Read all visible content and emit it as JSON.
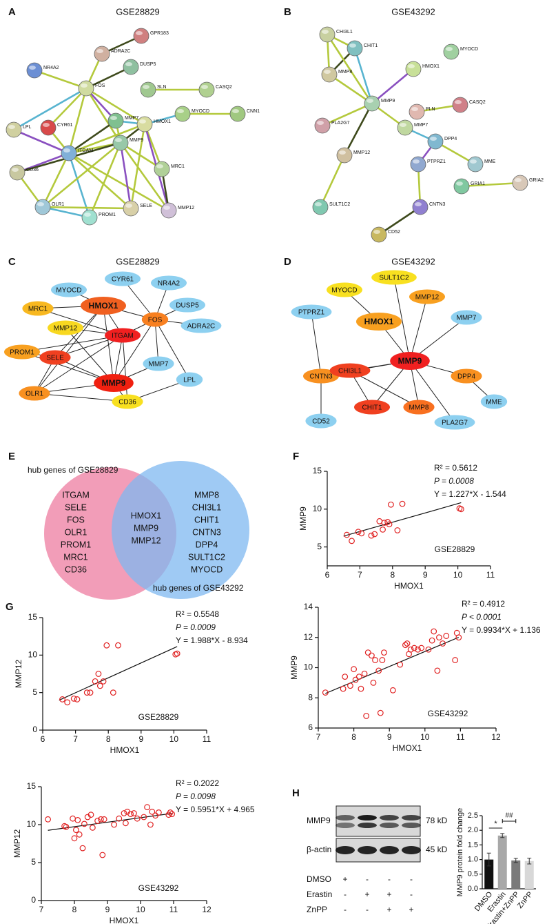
{
  "networks": [
    {
      "letter": "A",
      "title": "GSE28829",
      "style": "string",
      "nodes": [
        {
          "label": "GPR183",
          "color": "#d08080"
        },
        {
          "label": "ADRA2C",
          "color": "#d0b0a0"
        },
        {
          "label": "NR4A2",
          "color": "#6c8fd4"
        },
        {
          "label": "DUSP5",
          "color": "#8fc0a0"
        },
        {
          "label": "FOS",
          "color": "#d0dba0"
        },
        {
          "label": "SLN",
          "color": "#a0c890"
        },
        {
          "label": "CASQ2",
          "color": "#b0d090"
        },
        {
          "label": "CYR61",
          "color": "#d84a4a"
        },
        {
          "label": "LPL",
          "color": "#d0d0a0"
        },
        {
          "label": "MMP7",
          "color": "#80c090"
        },
        {
          "label": "HMOX1",
          "color": "#d8dca0"
        },
        {
          "label": "MYOCD",
          "color": "#a8d088"
        },
        {
          "label": "CNN1",
          "color": "#a0c880"
        },
        {
          "label": "ITGAM",
          "color": "#80b0d8"
        },
        {
          "label": "CD36",
          "color": "#c8c8a0"
        },
        {
          "label": "MMP9",
          "color": "#98c8a8"
        },
        {
          "label": "MRC1",
          "color": "#b0d098"
        },
        {
          "label": "OLR1",
          "color": "#a0c8d8"
        },
        {
          "label": "PROM1",
          "color": "#a0e0d0"
        },
        {
          "label": "SELE",
          "color": "#d8d0a8"
        },
        {
          "label": "MMP12",
          "color": "#d0c0d8"
        }
      ]
    },
    {
      "letter": "B",
      "title": "GSE43292",
      "style": "string",
      "nodes": [
        {
          "label": "CHI3L1",
          "color": "#c8d0a0"
        },
        {
          "label": "CHIT1",
          "color": "#80c0c0"
        },
        {
          "label": "MYOCD",
          "color": "#a0d0a0"
        },
        {
          "label": "MMP8",
          "color": "#d0c8a0"
        },
        {
          "label": "HMOX1",
          "color": "#c8e098"
        },
        {
          "label": "MMP9",
          "color": "#a8d0b0"
        },
        {
          "label": "PLN",
          "color": "#e0b8b0"
        },
        {
          "label": "CASQ2",
          "color": "#d08088"
        },
        {
          "label": "PLA2G7",
          "color": "#d0a0a8"
        },
        {
          "label": "MMP7",
          "color": "#c0d8a0"
        },
        {
          "label": "DPP4",
          "color": "#80b8d0"
        },
        {
          "label": "PTPRZ1",
          "color": "#90a8d0"
        },
        {
          "label": "MME",
          "color": "#a0c8d0"
        },
        {
          "label": "MMP12",
          "color": "#d0c0a0"
        },
        {
          "label": "GRIA2",
          "color": "#d8c8b8"
        },
        {
          "label": "GRIA1",
          "color": "#80c8a0"
        },
        {
          "label": "CNTN3",
          "color": "#9080d0"
        },
        {
          "label": "SULT1C2",
          "color": "#80c8b0"
        },
        {
          "label": "CD52",
          "color": "#c8b860"
        }
      ]
    },
    {
      "letter": "C",
      "title": "GSE28829",
      "style": "ellipse",
      "nodes": [
        {
          "label": "MYOCD",
          "color": "#8dd0f0"
        },
        {
          "label": "CYR61",
          "color": "#8dd0f0"
        },
        {
          "label": "NR4A2",
          "color": "#8dd0f0"
        },
        {
          "label": "DUSP5",
          "color": "#8dd0f0"
        },
        {
          "label": "HMOX1",
          "color": "#f06020",
          "bold": true
        },
        {
          "label": "MRC1",
          "color": "#f8b820"
        },
        {
          "label": "FOS",
          "color": "#f88020"
        },
        {
          "label": "ADRA2C",
          "color": "#8dd0f0"
        },
        {
          "label": "MMP12",
          "color": "#f8d820"
        },
        {
          "label": "ITGAM",
          "color": "#f02020"
        },
        {
          "label": "PROM1",
          "color": "#f8a020"
        },
        {
          "label": "SELE",
          "color": "#f04020"
        },
        {
          "label": "MMP7",
          "color": "#8dd0f0"
        },
        {
          "label": "MMP9",
          "color": "#f02010",
          "bold": true
        },
        {
          "label": "LPL",
          "color": "#8dd0f0"
        },
        {
          "label": "OLR1",
          "color": "#f89020"
        },
        {
          "label": "CD36",
          "color": "#f8e020"
        }
      ]
    },
    {
      "letter": "D",
      "title": "GSE43292",
      "style": "ellipse",
      "nodes": [
        {
          "label": "MYOCD",
          "color": "#f8e020"
        },
        {
          "label": "SULT1C2",
          "color": "#f8e020"
        },
        {
          "label": "MMP12",
          "color": "#f8a020"
        },
        {
          "label": "PTPRZ1",
          "color": "#8dd0f0"
        },
        {
          "label": "HMOX1",
          "color": "#f8a020",
          "bold": true
        },
        {
          "label": "MMP7",
          "color": "#8dd0f0"
        },
        {
          "label": "CNTN3",
          "color": "#f89020"
        },
        {
          "label": "CHI3L1",
          "color": "#f04020"
        },
        {
          "label": "MMP9",
          "color": "#f02020",
          "bold": true
        },
        {
          "label": "DPP4",
          "color": "#f89020"
        },
        {
          "label": "MME",
          "color": "#8dd0f0"
        },
        {
          "label": "CD52",
          "color": "#8dd0f0"
        },
        {
          "label": "CHIT1",
          "color": "#f04020"
        },
        {
          "label": "MMP8",
          "color": "#f87020"
        },
        {
          "label": "PLA2G7",
          "color": "#8dd0f0"
        }
      ]
    }
  ],
  "venn": {
    "letter": "E",
    "left_title": "hub genes of GSE28829",
    "right_title": "hub genes of GSE43292",
    "left_color": "#f08cab",
    "right_color": "#7fb8f0",
    "left_only": [
      "ITGAM",
      "SELE",
      "FOS",
      "OLR1",
      "PROM1",
      "MRC1",
      "CD36"
    ],
    "shared": [
      "HMOX1",
      "MMP9",
      "MMP12"
    ],
    "right_only": [
      "MMP8",
      "CHI3L1",
      "CHIT1",
      "CNTN3",
      "DPP4",
      "SULT1C2",
      "MYOCD"
    ]
  },
  "chart_data": [
    {
      "type": "scatter",
      "letter": "F",
      "dataset": "GSE28829",
      "xlabel": "HMOX1",
      "ylabel": "MMP9",
      "color": "#e02020",
      "stats": [
        "R² = 0.5612",
        "P = 0.0008",
        "Y = 1.227*X - 1.544"
      ],
      "xlim": [
        6,
        11
      ],
      "xticks": [
        6,
        7,
        8,
        9,
        10,
        11
      ],
      "ylim": [
        2.5,
        15
      ],
      "yticks": [
        5,
        10,
        15
      ],
      "points": {
        "x": [
          6.6,
          6.75,
          6.95,
          7.05,
          7.35,
          7.45,
          7.6,
          7.7,
          7.75,
          7.85,
          7.9,
          7.95,
          8.15,
          8.3,
          10.05,
          10.1
        ],
        "y": [
          6.6,
          5.8,
          7.0,
          6.8,
          6.5,
          6.7,
          8.4,
          7.3,
          8.2,
          8.3,
          8.0,
          10.6,
          7.2,
          10.7,
          10.1,
          10.0
        ]
      },
      "fit_line": {
        "x": [
          6.5,
          10.1
        ],
        "y": [
          6.43,
          10.85
        ]
      }
    },
    {
      "type": "scatter",
      "letter": "G",
      "dataset": "GSE28829",
      "xlabel": "HMOX1",
      "ylabel": "MMP12",
      "color": "#e02020",
      "stats": [
        "R² = 0.5548",
        "P = 0.0009",
        "Y = 1.988*X - 8.934"
      ],
      "xlim": [
        6,
        11
      ],
      "xticks": [
        6,
        7,
        8,
        9,
        10,
        11
      ],
      "ylim": [
        0,
        15
      ],
      "yticks": [
        0,
        5,
        10,
        15
      ],
      "points": {
        "x": [
          6.6,
          6.75,
          6.95,
          7.05,
          7.35,
          7.45,
          7.6,
          7.7,
          7.75,
          7.85,
          7.95,
          8.15,
          8.3,
          10.05,
          10.1
        ],
        "y": [
          4.1,
          3.7,
          4.2,
          4.1,
          5.0,
          5.0,
          6.5,
          7.5,
          5.9,
          6.5,
          11.3,
          5.0,
          11.3,
          10.1,
          10.2
        ]
      },
      "fit_line": {
        "x": [
          6.5,
          10.1
        ],
        "y": [
          3.99,
          11.14
        ]
      }
    },
    {
      "type": "scatter",
      "dataset": "GSE43292",
      "xlabel": "HMOX1",
      "ylabel": "MMP9",
      "color": "#e02020",
      "stats": [
        "R² = 0.4912",
        "P < 0.0001",
        "Y = 0.9934*X + 1.136"
      ],
      "xlim": [
        7,
        12
      ],
      "xticks": [
        7,
        8,
        9,
        10,
        11,
        12
      ],
      "ylim": [
        6,
        14
      ],
      "yticks": [
        6,
        8,
        10,
        12,
        14
      ],
      "points": {
        "x": [
          7.2,
          7.7,
          7.75,
          7.9,
          8.0,
          8.05,
          8.15,
          8.2,
          8.3,
          8.35,
          8.4,
          8.5,
          8.55,
          8.6,
          8.7,
          8.75,
          8.8,
          8.85,
          9.1,
          9.3,
          9.45,
          9.5,
          9.55,
          9.6,
          9.7,
          9.8,
          9.9,
          10.1,
          10.2,
          10.25,
          10.35,
          10.4,
          10.5,
          10.6,
          10.85,
          10.9,
          10.95
        ],
        "y": [
          8.35,
          8.6,
          9.4,
          8.8,
          9.9,
          9.2,
          9.4,
          8.6,
          9.6,
          6.8,
          11.0,
          10.8,
          9.0,
          10.5,
          9.8,
          7.0,
          10.5,
          11.0,
          8.5,
          10.2,
          11.5,
          11.6,
          10.9,
          11.2,
          11.3,
          11.2,
          11.3,
          11.2,
          11.8,
          12.4,
          9.8,
          12.0,
          11.6,
          12.1,
          10.5,
          12.3,
          12.0
        ]
      },
      "fit_line": {
        "x": [
          7.2,
          10.95
        ],
        "y": [
          8.29,
          12.01
        ]
      }
    },
    {
      "type": "scatter",
      "dataset": "GSE43292",
      "xlabel": "HMOX1",
      "ylabel": "MMP12",
      "color": "#e02020",
      "stats": [
        "R² = 0.2022",
        "P = 0.0098",
        "Y = 0.5951*X + 4.965"
      ],
      "xlim": [
        7,
        12
      ],
      "xticks": [
        7,
        8,
        9,
        10,
        11,
        12
      ],
      "ylim": [
        0,
        15
      ],
      "yticks": [
        0,
        5,
        10,
        15
      ],
      "points": {
        "x": [
          7.2,
          7.7,
          7.75,
          7.95,
          8.0,
          8.05,
          8.1,
          8.15,
          8.25,
          8.3,
          8.4,
          8.5,
          8.55,
          8.7,
          8.8,
          8.85,
          8.9,
          9.2,
          9.35,
          9.5,
          9.55,
          9.6,
          9.7,
          9.8,
          9.9,
          10.1,
          10.2,
          10.3,
          10.35,
          10.45,
          10.55,
          10.85,
          10.9,
          10.95
        ],
        "y": [
          10.7,
          9.8,
          9.7,
          10.8,
          8.2,
          9.3,
          10.6,
          8.7,
          6.9,
          10.1,
          11.0,
          11.3,
          9.6,
          10.5,
          10.7,
          6.0,
          10.7,
          10.0,
          10.8,
          11.5,
          10.2,
          11.7,
          11.4,
          11.5,
          10.8,
          11.0,
          12.3,
          10.0,
          11.7,
          11.2,
          11.6,
          11.3,
          11.6,
          11.4
        ]
      },
      "fit_line": {
        "x": [
          7.2,
          10.95
        ],
        "y": [
          9.25,
          11.48
        ]
      }
    },
    {
      "type": "bar",
      "ylabel": "MMP9 protein fold change",
      "categories": [
        "DMSO",
        "Erastin",
        "Erastin+ZnPP",
        "ZnPP"
      ],
      "values": [
        1.0,
        1.82,
        0.97,
        0.95
      ],
      "errors": [
        0.22,
        0.07,
        0.07,
        0.1
      ],
      "colors": [
        "#111111",
        "#a8a8a8",
        "#7a7a7a",
        "#d8d8d8"
      ],
      "ylim": [
        0,
        2.5
      ],
      "yticks": [
        {
          "value": 0,
          "label": "0.0"
        },
        0.5,
        {
          "value": 1,
          "label": "1.0"
        },
        1.5,
        {
          "value": 2,
          "label": "2.0"
        },
        2.5
      ],
      "annotations": [
        "*",
        "##"
      ]
    }
  ],
  "blot": {
    "letter": "H",
    "rows": [
      {
        "label": "MMP9",
        "size": "78 kD"
      },
      {
        "label": "β-actin",
        "size": "45 kD"
      }
    ],
    "treatments": [
      {
        "label": "DMSO",
        "signs": [
          "+",
          "-",
          "-",
          "-"
        ]
      },
      {
        "label": "Erastin",
        "signs": [
          "-",
          "+",
          "+",
          "-"
        ]
      },
      {
        "label": "ZnPP",
        "signs": [
          "-",
          "-",
          "+",
          "+"
        ]
      }
    ]
  }
}
